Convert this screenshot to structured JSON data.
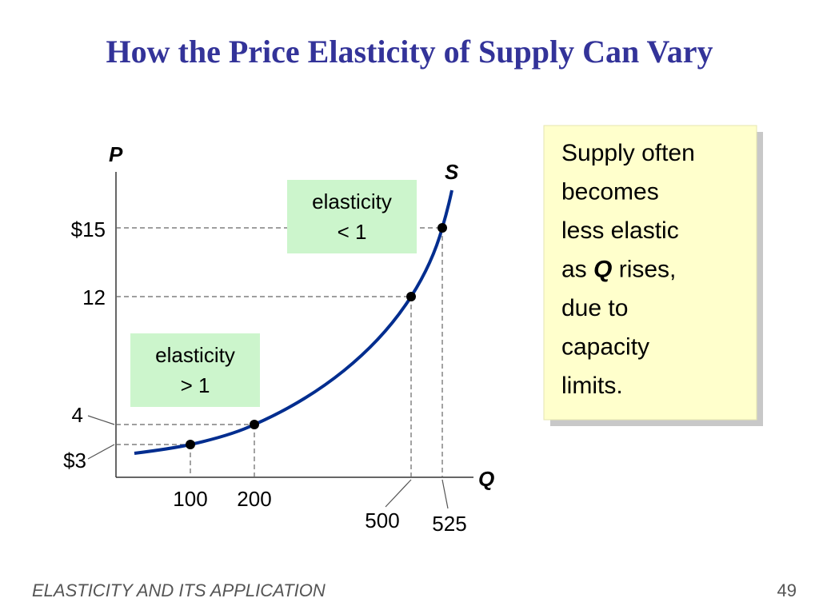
{
  "header": {
    "title": "How the Price Elasticity of Supply Can Vary"
  },
  "diagram": {
    "y_axis_label": "P",
    "x_axis_label": "Q",
    "curve_label": "S",
    "price_labels": [
      "$3",
      "4",
      "12",
      "$15"
    ],
    "quantity_labels": [
      "100",
      "200",
      "500",
      "525"
    ],
    "boxes": [
      {
        "lines": [
          "elasticity",
          "> 1"
        ]
      },
      {
        "lines": [
          "elasticity",
          "< 1"
        ]
      }
    ]
  },
  "note": {
    "lines": [
      "Supply often",
      "becomes",
      "less elastic",
      [
        "as ",
        "Q",
        " rises,"
      ],
      "due to",
      "capacity",
      "limits."
    ]
  },
  "footer": {
    "section": "ELASTICITY AND ITS APPLICATION",
    "page": 49
  }
}
